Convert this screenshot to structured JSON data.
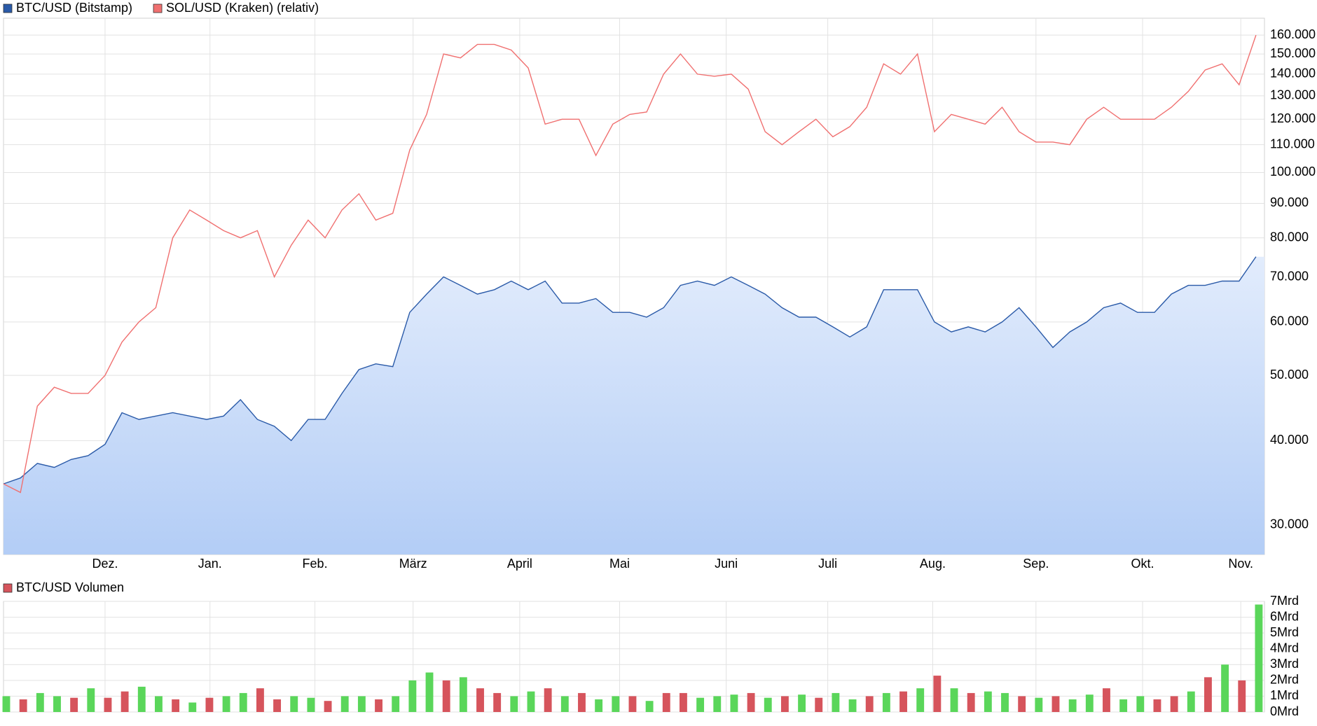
{
  "chart_data": [
    {
      "type": "line",
      "log_scale": true,
      "grid": true,
      "xlim": [
        0,
        74.5
      ],
      "xticks": [
        {
          "value": 6.0,
          "label": "Dez."
        },
        {
          "value": 12.2,
          "label": "Jan."
        },
        {
          "value": 18.4,
          "label": "Feb."
        },
        {
          "value": 24.2,
          "label": "März"
        },
        {
          "value": 30.5,
          "label": "April"
        },
        {
          "value": 36.4,
          "label": "Mai"
        },
        {
          "value": 42.7,
          "label": "Juni"
        },
        {
          "value": 48.7,
          "label": "Juli"
        },
        {
          "value": 54.9,
          "label": "Aug."
        },
        {
          "value": 61.0,
          "label": "Sep."
        },
        {
          "value": 67.3,
          "label": "Okt."
        },
        {
          "value": 73.1,
          "label": "Nov."
        }
      ],
      "ylim": [
        27100,
        169500
      ],
      "yticks": [
        {
          "value": 30000,
          "label": "30.000"
        },
        {
          "value": 40000,
          "label": "40.000"
        },
        {
          "value": 50000,
          "label": "50.000"
        },
        {
          "value": 60000,
          "label": "60.000"
        },
        {
          "value": 70000,
          "label": "70.000"
        },
        {
          "value": 80000,
          "label": "80.000"
        },
        {
          "value": 90000,
          "label": "90.000"
        },
        {
          "value": 100000,
          "label": "100.000"
        },
        {
          "value": 110000,
          "label": "110.000"
        },
        {
          "value": 120000,
          "label": "120.000"
        },
        {
          "value": 130000,
          "label": "130.000"
        },
        {
          "value": 140000,
          "label": "140.000"
        },
        {
          "value": 150000,
          "label": "150.000"
        },
        {
          "value": 160000,
          "label": "160.000"
        }
      ],
      "series": [
        {
          "name": "BTC/USD (Bitstamp)",
          "color": "#2a5aa8",
          "fill": true,
          "values": [
            34500,
            35200,
            37000,
            36500,
            37500,
            38000,
            39500,
            44000,
            43000,
            43500,
            44000,
            43500,
            43000,
            43500,
            46000,
            43000,
            42000,
            40000,
            43000,
            43000,
            47000,
            51000,
            52000,
            51500,
            62000,
            66000,
            70000,
            68000,
            66000,
            67000,
            69000,
            67000,
            69000,
            64000,
            64000,
            65000,
            62000,
            62000,
            61000,
            63000,
            68000,
            69000,
            68000,
            70000,
            68000,
            66000,
            63000,
            61000,
            61000,
            59000,
            57000,
            59000,
            67000,
            67000,
            67000,
            60000,
            58000,
            59000,
            58000,
            60000,
            63000,
            59000,
            55000,
            58000,
            60000,
            63000,
            64000,
            62000,
            62000,
            66000,
            68000,
            68000,
            69000,
            69000,
            75000
          ]
        },
        {
          "name": "SOL/USD (Kraken) (relativ)",
          "color": "#f07070",
          "fill": false,
          "values": [
            34500,
            33500,
            45000,
            48000,
            47000,
            47000,
            50000,
            56000,
            60000,
            63000,
            80000,
            88000,
            85000,
            82000,
            80000,
            82000,
            70000,
            78000,
            85000,
            80000,
            88000,
            93000,
            85000,
            87000,
            108000,
            122000,
            150000,
            148000,
            155000,
            155000,
            152000,
            143000,
            118000,
            120000,
            120000,
            106000,
            118000,
            122000,
            123000,
            140000,
            150000,
            140000,
            139000,
            140000,
            133000,
            115000,
            110000,
            115000,
            120000,
            113000,
            117000,
            125000,
            145000,
            140000,
            150000,
            115000,
            122000,
            120000,
            118000,
            125000,
            115000,
            111000,
            111000,
            110000,
            120000,
            125000,
            120000,
            120000,
            120000,
            125000,
            132000,
            142000,
            145000,
            135000,
            160000
          ]
        }
      ]
    },
    {
      "type": "bar",
      "grid": true,
      "xlim": [
        0,
        74.5
      ],
      "ylim": [
        0,
        7
      ],
      "yticks": [
        {
          "value": 0,
          "label": "0Mrd"
        },
        {
          "value": 1,
          "label": "1Mrd"
        },
        {
          "value": 2,
          "label": "2Mrd"
        },
        {
          "value": 3,
          "label": "3Mrd"
        },
        {
          "value": 4,
          "label": "4Mrd"
        },
        {
          "value": 5,
          "label": "5Mrd"
        },
        {
          "value": 6,
          "label": "6Mrd"
        },
        {
          "value": 7,
          "label": "7Mrd"
        }
      ],
      "series": [
        {
          "name": "BTC/USD Volumen",
          "color": "#d6545c",
          "values": [
            1.0,
            0.8,
            1.2,
            1.0,
            0.9,
            1.5,
            0.9,
            1.3,
            1.6,
            1.0,
            0.8,
            0.6,
            0.9,
            1.0,
            1.2,
            1.5,
            0.8,
            1.0,
            0.9,
            0.7,
            1.0,
            1.0,
            0.8,
            1.0,
            2.0,
            2.5,
            2.0,
            2.2,
            1.5,
            1.2,
            1.0,
            1.3,
            1.5,
            1.0,
            1.2,
            0.8,
            1.0,
            1.0,
            0.7,
            1.2,
            1.2,
            0.9,
            1.0,
            1.1,
            1.2,
            0.9,
            1.0,
            1.1,
            0.9,
            1.2,
            0.8,
            1.0,
            1.2,
            1.3,
            1.5,
            2.3,
            1.5,
            1.2,
            1.3,
            1.2,
            1.0,
            0.9,
            1.0,
            0.8,
            1.1,
            1.5,
            0.8,
            1.0,
            0.8,
            1.0,
            1.3,
            2.2,
            3.0,
            2.0,
            6.8
          ],
          "colors": [
            "#5ad65a",
            "#d6545c",
            "#5ad65a",
            "#5ad65a",
            "#d6545c",
            "#5ad65a",
            "#d6545c",
            "#d6545c",
            "#5ad65a",
            "#5ad65a",
            "#d6545c",
            "#5ad65a",
            "#d6545c",
            "#5ad65a",
            "#5ad65a",
            "#d6545c",
            "#d6545c",
            "#5ad65a",
            "#5ad65a",
            "#d6545c",
            "#5ad65a",
            "#5ad65a",
            "#d6545c",
            "#5ad65a",
            "#5ad65a",
            "#5ad65a",
            "#d6545c",
            "#5ad65a",
            "#d6545c",
            "#d6545c",
            "#5ad65a",
            "#5ad65a",
            "#d6545c",
            "#5ad65a",
            "#d6545c",
            "#5ad65a",
            "#5ad65a",
            "#d6545c",
            "#5ad65a",
            "#d6545c",
            "#d6545c",
            "#5ad65a",
            "#5ad65a",
            "#5ad65a",
            "#d6545c",
            "#5ad65a",
            "#d6545c",
            "#5ad65a",
            "#d6545c",
            "#5ad65a",
            "#5ad65a",
            "#d6545c",
            "#5ad65a",
            "#d6545c",
            "#5ad65a",
            "#d6545c",
            "#5ad65a",
            "#d6545c",
            "#5ad65a",
            "#5ad65a",
            "#d6545c",
            "#5ad65a",
            "#d6545c",
            "#5ad65a",
            "#5ad65a",
            "#d6545c",
            "#5ad65a",
            "#5ad65a",
            "#d6545c",
            "#d6545c",
            "#5ad65a",
            "#d6545c",
            "#5ad65a",
            "#d6545c",
            "#5ad65a"
          ]
        }
      ]
    }
  ]
}
